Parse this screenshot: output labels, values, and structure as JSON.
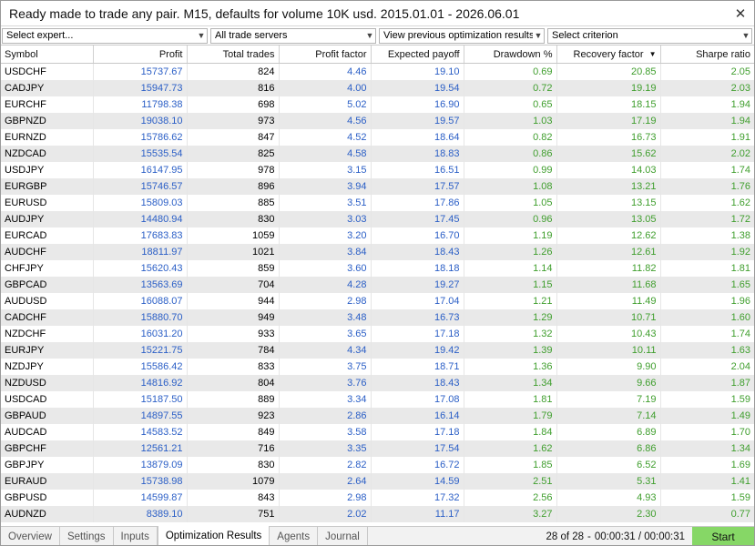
{
  "window": {
    "title": "Ready made to trade any pair. M15, defaults for volume 10K usd. 2015.01.01 - 2026.06.01",
    "close_glyph": "✕"
  },
  "filters": [
    {
      "name": "expert-select",
      "value": "Select expert..."
    },
    {
      "name": "server-select",
      "value": "All trade servers"
    },
    {
      "name": "previous-results-select",
      "value": "View previous optimization results"
    },
    {
      "name": "criterion-select",
      "value": "Select criterion"
    }
  ],
  "table": {
    "columns": [
      "Symbol",
      "Profit",
      "Total trades",
      "Profit factor",
      "Expected payoff",
      "Drawdown %",
      "Recovery factor",
      "Sharpe ratio"
    ],
    "sorted_column": "Recovery factor",
    "sort_direction": "descending",
    "rows": [
      [
        "USDCHF",
        "15737.67",
        "824",
        "4.46",
        "19.10",
        "0.69",
        "20.85",
        "2.05"
      ],
      [
        "CADJPY",
        "15947.73",
        "816",
        "4.00",
        "19.54",
        "0.72",
        "19.19",
        "2.03"
      ],
      [
        "EURCHF",
        "11798.38",
        "698",
        "5.02",
        "16.90",
        "0.65",
        "18.15",
        "1.94"
      ],
      [
        "GBPNZD",
        "19038.10",
        "973",
        "4.56",
        "19.57",
        "1.03",
        "17.19",
        "1.94"
      ],
      [
        "EURNZD",
        "15786.62",
        "847",
        "4.52",
        "18.64",
        "0.82",
        "16.73",
        "1.91"
      ],
      [
        "NZDCAD",
        "15535.54",
        "825",
        "4.58",
        "18.83",
        "0.86",
        "15.62",
        "2.02"
      ],
      [
        "USDJPY",
        "16147.95",
        "978",
        "3.15",
        "16.51",
        "0.99",
        "14.03",
        "1.74"
      ],
      [
        "EURGBP",
        "15746.57",
        "896",
        "3.94",
        "17.57",
        "1.08",
        "13.21",
        "1.76"
      ],
      [
        "EURUSD",
        "15809.03",
        "885",
        "3.51",
        "17.86",
        "1.05",
        "13.15",
        "1.62"
      ],
      [
        "AUDJPY",
        "14480.94",
        "830",
        "3.03",
        "17.45",
        "0.96",
        "13.05",
        "1.72"
      ],
      [
        "EURCAD",
        "17683.83",
        "1059",
        "3.20",
        "16.70",
        "1.19",
        "12.62",
        "1.38"
      ],
      [
        "AUDCHF",
        "18811.97",
        "1021",
        "3.84",
        "18.43",
        "1.26",
        "12.61",
        "1.92"
      ],
      [
        "CHFJPY",
        "15620.43",
        "859",
        "3.60",
        "18.18",
        "1.14",
        "11.82",
        "1.81"
      ],
      [
        "GBPCAD",
        "13563.69",
        "704",
        "4.28",
        "19.27",
        "1.15",
        "11.68",
        "1.65"
      ],
      [
        "AUDUSD",
        "16088.07",
        "944",
        "2.98",
        "17.04",
        "1.21",
        "11.49",
        "1.96"
      ],
      [
        "CADCHF",
        "15880.70",
        "949",
        "3.48",
        "16.73",
        "1.29",
        "10.71",
        "1.60"
      ],
      [
        "NZDCHF",
        "16031.20",
        "933",
        "3.65",
        "17.18",
        "1.32",
        "10.43",
        "1.74"
      ],
      [
        "EURJPY",
        "15221.75",
        "784",
        "4.34",
        "19.42",
        "1.39",
        "10.11",
        "1.63"
      ],
      [
        "NZDJPY",
        "15586.42",
        "833",
        "3.75",
        "18.71",
        "1.36",
        "9.90",
        "2.04"
      ],
      [
        "NZDUSD",
        "14816.92",
        "804",
        "3.76",
        "18.43",
        "1.34",
        "9.66",
        "1.87"
      ],
      [
        "USDCAD",
        "15187.50",
        "889",
        "3.34",
        "17.08",
        "1.81",
        "7.19",
        "1.59"
      ],
      [
        "GBPAUD",
        "14897.55",
        "923",
        "2.86",
        "16.14",
        "1.79",
        "7.14",
        "1.49"
      ],
      [
        "AUDCAD",
        "14583.52",
        "849",
        "3.58",
        "17.18",
        "1.84",
        "6.89",
        "1.70"
      ],
      [
        "GBPCHF",
        "12561.21",
        "716",
        "3.35",
        "17.54",
        "1.62",
        "6.86",
        "1.34"
      ],
      [
        "GBPJPY",
        "13879.09",
        "830",
        "2.82",
        "16.72",
        "1.85",
        "6.52",
        "1.69"
      ],
      [
        "EURAUD",
        "15738.98",
        "1079",
        "2.64",
        "14.59",
        "2.51",
        "5.31",
        "1.41"
      ],
      [
        "GBPUSD",
        "14599.87",
        "843",
        "2.98",
        "17.32",
        "2.56",
        "4.93",
        "1.59"
      ],
      [
        "AUDNZD",
        "8389.10",
        "751",
        "2.02",
        "11.17",
        "3.27",
        "2.30",
        "0.77"
      ]
    ]
  },
  "tabs": [
    {
      "label": "Overview",
      "active": false
    },
    {
      "label": "Settings",
      "active": false
    },
    {
      "label": "Inputs",
      "active": false
    },
    {
      "label": "Optimization Results",
      "active": true
    },
    {
      "label": "Agents",
      "active": false
    },
    {
      "label": "Journal",
      "active": false
    }
  ],
  "status": {
    "count": "28 of 28",
    "elapsed": "00:00:31 / 00:00:31"
  },
  "start_label": "Start",
  "colors": {
    "blue_values": "#2a5ec6",
    "green_values": "#3f9e2d",
    "alt_row": "#e9e9e9",
    "start_button": "#86d766"
  }
}
